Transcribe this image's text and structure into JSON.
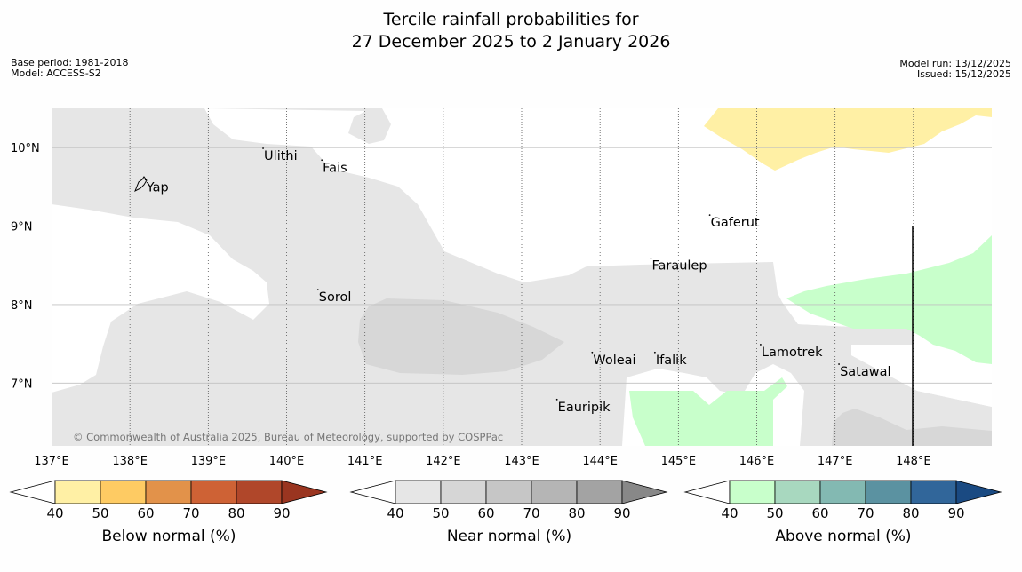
{
  "title": {
    "line1": "Tercile rainfall probabilities for",
    "line2": "27 December 2025 to 2 January 2026"
  },
  "meta_left": {
    "line1": "Base period: 1981-2018",
    "line2": "Model: ACCESS-S2"
  },
  "meta_right": {
    "line1": "Model run: 13/12/2025",
    "line2": "Issued: 15/12/2025"
  },
  "map": {
    "lon_min": 137.0,
    "lon_max": 149.0,
    "lat_min": 6.2,
    "lat_max": 10.5,
    "lat_labels": [
      "10°N",
      "9°N",
      "8°N",
      "7°N"
    ],
    "lat_values": [
      10,
      9,
      8,
      7
    ],
    "lon_labels": [
      "137°E",
      "138°E",
      "139°E",
      "140°E",
      "141°E",
      "142°E",
      "143°E",
      "144°E",
      "145°E",
      "146°E",
      "147°E",
      "148°E"
    ],
    "lon_values": [
      137,
      138,
      139,
      140,
      141,
      142,
      143,
      144,
      145,
      146,
      147,
      148
    ],
    "credit": "© Commonwealth of Australia 2025, Bureau of Meteorology, supported by COSPPac",
    "places": [
      {
        "name": "Yap",
        "lon": 138.2,
        "lat": 9.5
      },
      {
        "name": "Ulithi",
        "lon": 139.7,
        "lat": 9.9
      },
      {
        "name": "Fais",
        "lon": 140.45,
        "lat": 9.75
      },
      {
        "name": "Gaferut",
        "lon": 145.4,
        "lat": 9.05
      },
      {
        "name": "Faraulep",
        "lon": 144.65,
        "lat": 8.5
      },
      {
        "name": "Sorol",
        "lon": 140.4,
        "lat": 8.1
      },
      {
        "name": "Lamotrek",
        "lon": 146.05,
        "lat": 7.4
      },
      {
        "name": "Woleai",
        "lon": 143.9,
        "lat": 7.3
      },
      {
        "name": "Ifalik",
        "lon": 144.7,
        "lat": 7.3
      },
      {
        "name": "Satawal",
        "lon": 147.05,
        "lat": 7.15
      },
      {
        "name": "Eauripik",
        "lon": 143.45,
        "lat": 6.7
      }
    ]
  },
  "colorbars": [
    {
      "title": "Below normal (%)",
      "ticks": [
        "40",
        "50",
        "60",
        "70",
        "80",
        "90"
      ],
      "colors": [
        "#fff0a5",
        "#fecb63",
        "#e2924a",
        "#ce6235",
        "#b0472a",
        "#9a3520"
      ]
    },
    {
      "title": "Near normal (%)",
      "ticks": [
        "40",
        "50",
        "60",
        "70",
        "80",
        "90"
      ],
      "colors": [
        "#e6e6e6",
        "#d6d6d6",
        "#c6c6c6",
        "#b5b5b5",
        "#a3a3a3",
        "#888888"
      ]
    },
    {
      "title": "Above normal (%)",
      "ticks": [
        "40",
        "50",
        "60",
        "70",
        "80",
        "90"
      ],
      "colors": [
        "#c8ffcb",
        "#a8d8bf",
        "#83b9b2",
        "#5b92a1",
        "#31669a",
        "#1a4a82"
      ]
    }
  ],
  "colors": {
    "near_40": "#e6e6e6",
    "near_50": "#d7d7d7",
    "below_40": "#fff0a5",
    "above_40": "#c8ffcb",
    "grid": "#c0c0c0"
  }
}
